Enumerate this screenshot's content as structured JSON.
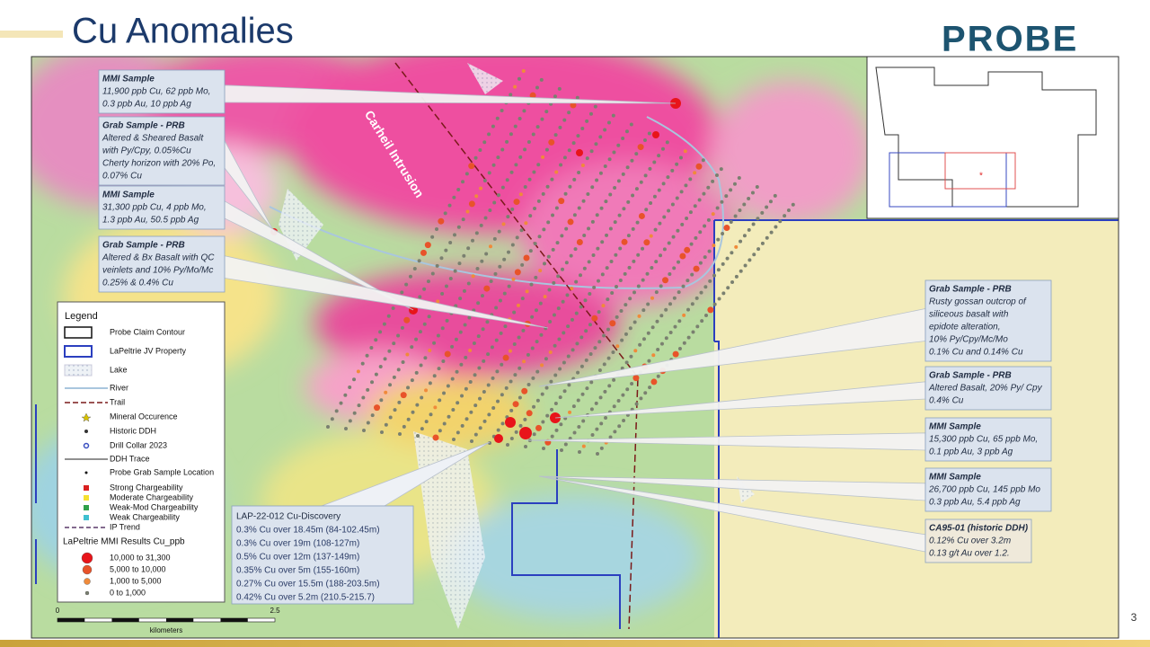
{
  "header": {
    "title": "Cu Anomalies",
    "logo": "PROBE"
  },
  "page_number": "3",
  "map": {
    "label": "Carheil Intrusion"
  },
  "callouts": [
    {
      "title": "MMI Sample",
      "lines": [
        "11,900 ppb Cu, 62 ppb Mo,",
        "0.3 ppb Au, 10 ppb Ag"
      ]
    },
    {
      "title": "Grab Sample - PRB",
      "lines": [
        "Altered & Sheared Basalt",
        "with Py/Cpy, 0.05%Cu",
        "Cherty horizon with 20% Po,",
        "0.07% Cu"
      ]
    },
    {
      "title": "MMI Sample",
      "lines": [
        "31,300 ppb Cu, 4 ppb Mo,",
        "1.3 ppb Au, 50.5 ppb Ag"
      ]
    },
    {
      "title": "Grab Sample - PRB",
      "lines": [
        "Altered & Bx Basalt with QC",
        "veinlets and 10% Py/Mo/Mc",
        "0.25% & 0.4% Cu"
      ]
    },
    {
      "title": "Grab Sample - PRB",
      "lines": [
        "Rusty gossan outcrop of",
        "siliceous basalt with",
        "epidote alteration,",
        "10% Py/Cpy/Mc/Mo",
        "0.1% Cu and 0.14% Cu"
      ]
    },
    {
      "title": "Grab Sample - PRB",
      "lines": [
        "Altered Basalt, 20% Py/ Cpy",
        "0.4% Cu"
      ]
    },
    {
      "title": "MMI Sample",
      "lines": [
        "15,300 ppb Cu, 65 ppb Mo,",
        "0.1 ppb Au, 3 ppb Ag"
      ]
    },
    {
      "title": "MMI Sample",
      "lines": [
        "26,700 ppb Cu, 145 ppb Mo",
        "0.3 ppb Au, 5.4 ppb Ag"
      ]
    },
    {
      "title": "CA95-01 (historic DDH)",
      "lines": [
        "0.12% Cu over 3.2m",
        "0.13 g/t Au over 1.2."
      ]
    }
  ],
  "discovery": {
    "title": "LAP-22-012 Cu-Discovery",
    "lines": [
      "0.3% Cu over 18.45m (84-102.45m)",
      "0.3% Cu over 19m (108-127m)",
      "0.5% Cu over 12m (137-149m)",
      "0.35% Cu over 5m (155-160m)",
      "0.27% Cu over 15.5m (188-203.5m)",
      "0.42% Cu over 5.2m (210.5-215.7)"
    ]
  },
  "legend": {
    "title": "Legend",
    "items": [
      "Probe Claim Contour",
      "LaPeltrie JV Property",
      "Lake",
      "River",
      "Trail",
      "Mineral Occurence",
      "Historic DDH",
      "Drill Collar 2023",
      "DDH Trace",
      "Probe Grab Sample Location",
      "Strong Chargeability",
      "Moderate Chargeability",
      "Weak-Mod Chargeability",
      "Weak Chargeability",
      "IP Trend"
    ],
    "mmi_title": "LaPeltrie MMI Results Cu_ppb",
    "mmi_items": [
      "10,000  to  31,300",
      "5,000  to  10,000",
      "1,000  to  5,000",
      "0  to  1,000"
    ]
  },
  "scale": {
    "start": "0",
    "end": "2.5",
    "unit": "kilometers"
  }
}
